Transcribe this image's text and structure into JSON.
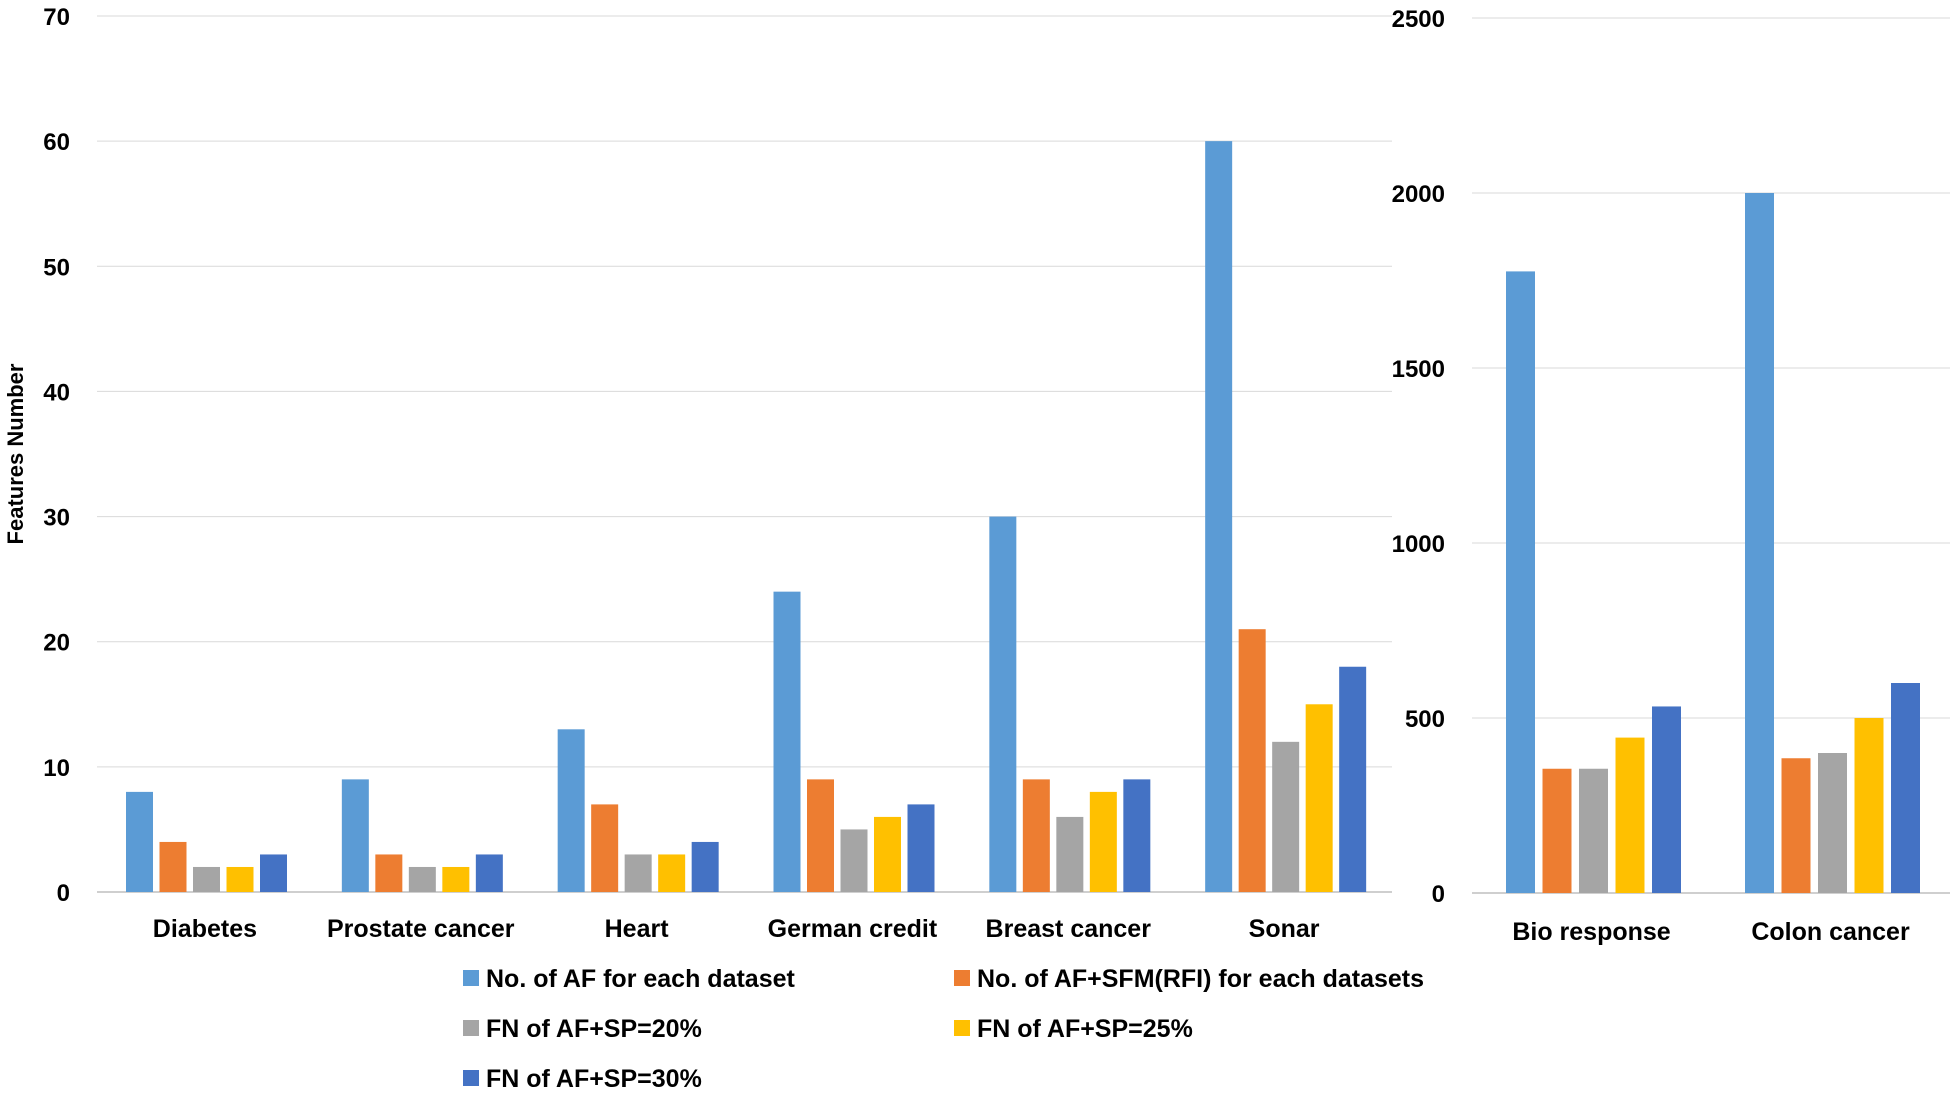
{
  "chart_data": [
    {
      "type": "bar",
      "title": "",
      "xlabel": "",
      "ylabel": "Features Number",
      "ylim": [
        0,
        70
      ],
      "yticks": [
        "0",
        "10",
        "20",
        "30",
        "40",
        "50",
        "60",
        "70"
      ],
      "grid": true,
      "categories": [
        "Diabetes",
        "Prostate cancer",
        "Heart",
        "German credit",
        "Breast cancer",
        "Sonar"
      ],
      "series": [
        {
          "name": "No. of AF for each dataset",
          "values": [
            8,
            9,
            13,
            24,
            30,
            60
          ]
        },
        {
          "name": "No. of  AF+SFM(RFI) for each datasets",
          "values": [
            4,
            3,
            7,
            9,
            9,
            21
          ]
        },
        {
          "name": "FN of AF+SP=20%",
          "values": [
            2,
            2,
            3,
            5,
            6,
            12
          ]
        },
        {
          "name": "FN of AF+SP=25%",
          "values": [
            2,
            2,
            3,
            6,
            8,
            15
          ]
        },
        {
          "name": "FN of AF+SP=30%",
          "values": [
            3,
            3,
            4,
            7,
            9,
            18
          ]
        }
      ]
    },
    {
      "type": "bar",
      "title": "",
      "xlabel": "",
      "ylabel": "",
      "ylim": [
        0,
        2500
      ],
      "yticks": [
        "0",
        "500",
        "1000",
        "1500",
        "2000",
        "2500"
      ],
      "grid": true,
      "categories": [
        "Bio response",
        "Colon cancer"
      ],
      "series": [
        {
          "name": "No. of AF for each dataset",
          "values": [
            1776,
            2000
          ]
        },
        {
          "name": "No. of  AF+SFM(RFI) for each datasets",
          "values": [
            355,
            385
          ]
        },
        {
          "name": "FN of AF+SP=20%",
          "values": [
            355,
            400
          ]
        },
        {
          "name": "FN of AF+SP=25%",
          "values": [
            444,
            500
          ]
        },
        {
          "name": "FN of AF+SP=30%",
          "values": [
            533,
            600
          ]
        }
      ]
    }
  ],
  "legend": {
    "placement": "bottom",
    "items": [
      {
        "label": "No. of AF for each dataset",
        "color": "#5B9BD5"
      },
      {
        "label": "No. of  AF+SFM(RFI) for each datasets",
        "color": "#ED7D31"
      },
      {
        "label": "FN of AF+SP=20%",
        "color": "#A5A5A5"
      },
      {
        "label": "FN of AF+SP=25%",
        "color": "#FFC000"
      },
      {
        "label": "FN of AF+SP=30%",
        "color": "#4472C4"
      }
    ]
  },
  "colors": {
    "series": [
      "#5B9BD5",
      "#ED7D31",
      "#A5A5A5",
      "#FFC000",
      "#4472C4"
    ],
    "grid": "#D9D9D9",
    "axis": "#BFBFBF"
  }
}
